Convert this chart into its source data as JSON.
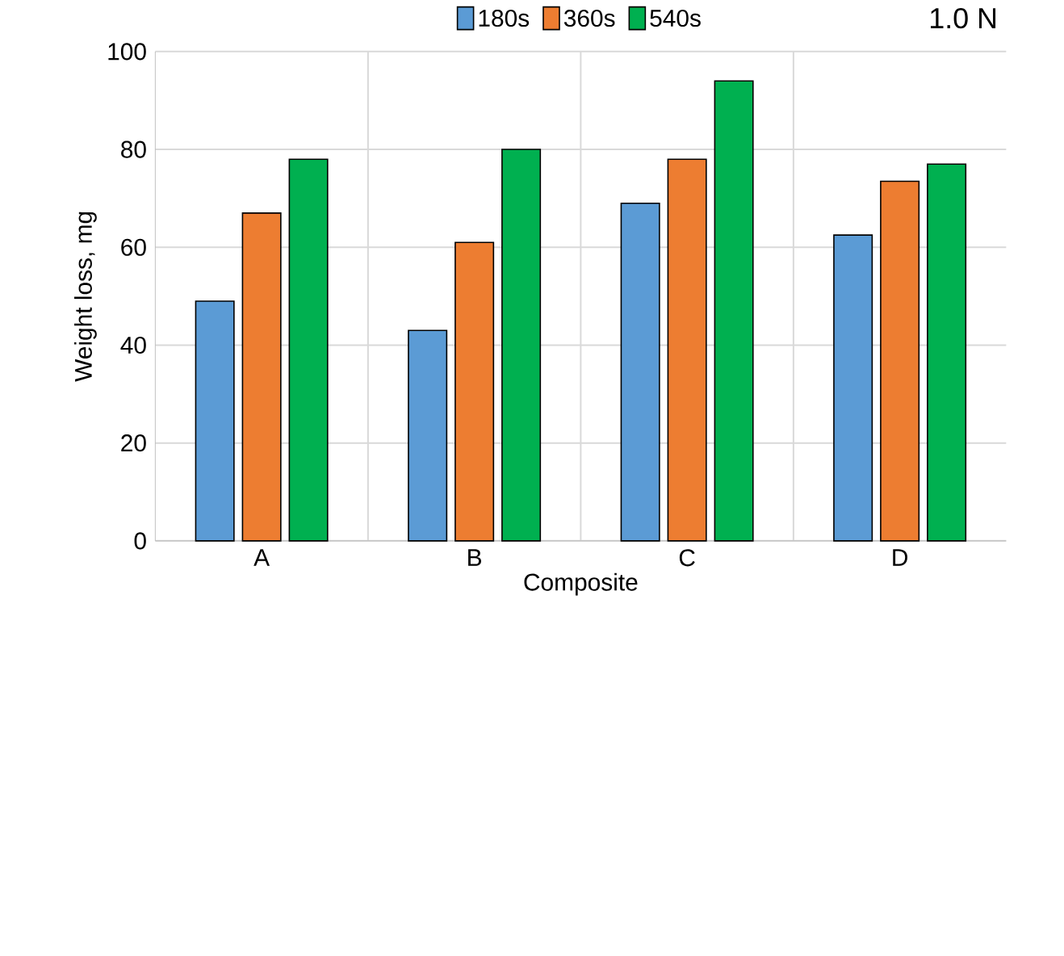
{
  "chart_data": {
    "type": "bar",
    "categories": [
      "A",
      "B",
      "C",
      "D"
    ],
    "series": [
      {
        "name": "180s",
        "color": "#5b9bd5",
        "values": [
          49,
          43,
          69,
          62.5
        ]
      },
      {
        "name": "360s",
        "color": "#ed7d31",
        "values": [
          67,
          61,
          78,
          73.5
        ]
      },
      {
        "name": "540s",
        "color": "#00b050",
        "values": [
          78,
          80,
          94,
          77
        ]
      }
    ],
    "xlabel": "Composite",
    "ylabel": "Weight loss, mg",
    "ylim": [
      0,
      100
    ],
    "yticks": [
      0,
      20,
      40,
      60,
      80,
      100
    ],
    "grid": true,
    "legend": "top",
    "annotations": [
      "1.0 N"
    ]
  }
}
